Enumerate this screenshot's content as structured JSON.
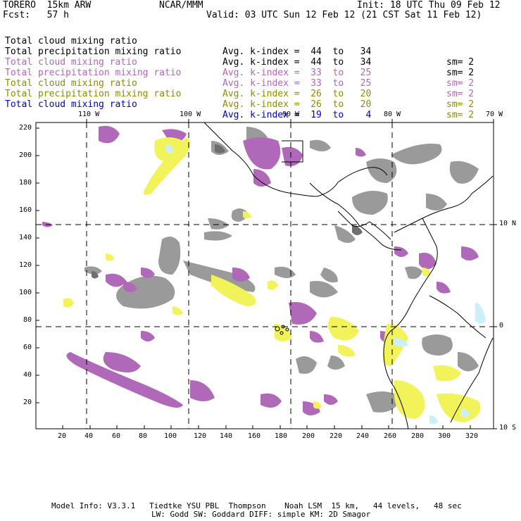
{
  "header": {
    "model": "TORERO  15km ARW",
    "org": "NCAR/MMM",
    "init": "Init: 18 UTC Thu 09 Feb 12",
    "fcst": "Fcst:   57 h",
    "valid": "Valid: 03 UTC Sun 12 Feb 12 (21 CST Sat 11 Feb 12)"
  },
  "legend": [
    {
      "name": "Total cloud mixing ratio",
      "kindex": "Avg. k-index =  44  to   34",
      "sm": "sm= 2",
      "color": "#000000"
    },
    {
      "name": "Total precipitation mixing ratio",
      "kindex": "Avg. k-index =  44  to   34",
      "sm": "sm= 2",
      "color": "#000000"
    },
    {
      "name": "Total cloud mixing ratio",
      "kindex": "Avg. k-index =  33  to   25",
      "sm": "sm= 2",
      "color": "#b366b3"
    },
    {
      "name": "Total precipitation mixing ratio",
      "kindex": "Avg. k-index =  33  to   25",
      "sm": "sm= 2",
      "color": "#b366b3"
    },
    {
      "name": "Total cloud mixing ratio",
      "kindex": "Avg. k-index =  26  to   20",
      "sm": "sm= 2",
      "color": "#8c8c00"
    },
    {
      "name": "Total precipitation mixing ratio",
      "kindex": "Avg. k-index =  26  to   20",
      "sm": "sm= 2",
      "color": "#8c8c00"
    },
    {
      "name": "Total cloud mixing ratio",
      "kindex": "Avg. k-index =  19  to    4",
      "sm": "",
      "color": "#0000cc"
    }
  ],
  "axes": {
    "top_lon": [
      "110 W",
      "100 W",
      "90 W",
      "80 W",
      "70 W"
    ],
    "right_lat": [
      "10 N",
      "0",
      "10 S"
    ],
    "left_y": [
      "220",
      "200",
      "180",
      "160",
      "140",
      "120",
      "100",
      "80",
      "60",
      "40",
      "20"
    ],
    "bottom_x": [
      "20",
      "40",
      "60",
      "80",
      "100",
      "120",
      "140",
      "160",
      "180",
      "200",
      "220",
      "240",
      "260",
      "280",
      "300",
      "320"
    ]
  },
  "footer": {
    "line1": "Model Info: V3.3.1   Tiedtke YSU PBL  Thompson    Noah LSM  15 km,   44 levels,   48 sec",
    "line2": "LW: Godd SW: Goddard DIFF: simple KM: 2D Smagor"
  },
  "colors": {
    "gray": "#9a9a9a",
    "dark_gray": "#6e6e6e",
    "purple": "#b069b9",
    "yellow": "#f2f25a",
    "light_blue": "#cdeffa"
  }
}
